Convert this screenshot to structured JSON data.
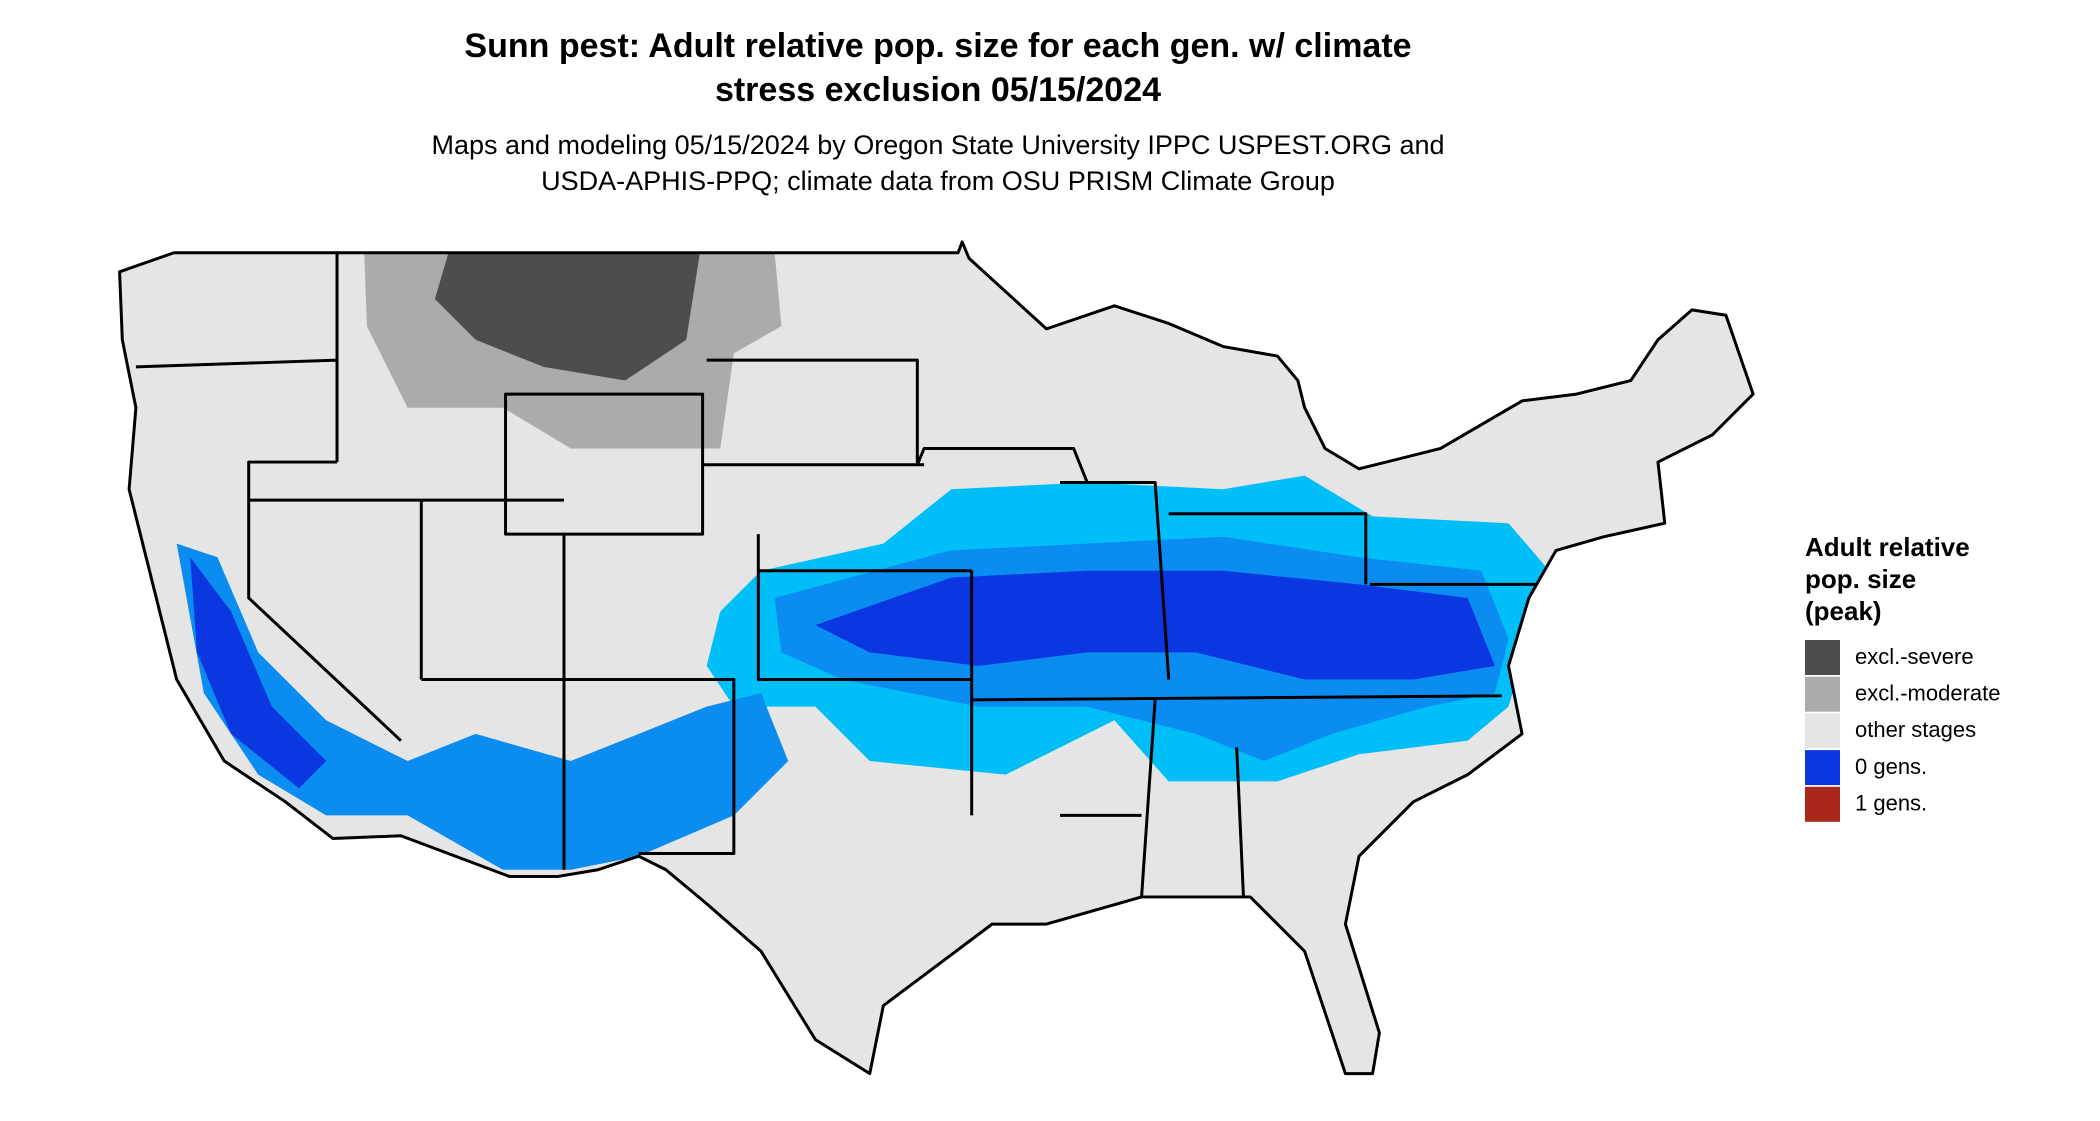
{
  "header": {
    "title": [
      "Sunn pest: Adult relative pop. size for each gen. w/ climate",
      "stress exclusion 05/15/2024"
    ],
    "subtitle": [
      "Maps and modeling 05/15/2024 by Oregon State University IPPC USPEST.ORG and",
      "USDA-APHIS-PPQ; climate data from OSU PRISM Climate Group"
    ]
  },
  "legend": {
    "title": [
      "Adult relative",
      "pop. size",
      "(peak)"
    ],
    "items": [
      {
        "label": "excl.-severe",
        "color": "#4d4d4d"
      },
      {
        "label": "excl.-moderate",
        "color": "#ababab"
      },
      {
        "label": "other stages",
        "color": "#e5e5e5"
      },
      {
        "label": "0 gens.",
        "color": "#0a37e0"
      },
      {
        "label": "1 gens.",
        "color": "#a8261a"
      }
    ]
  }
}
